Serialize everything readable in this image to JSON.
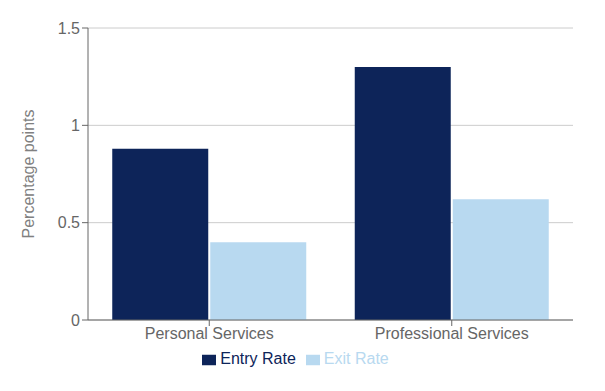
{
  "chart_data": {
    "type": "bar",
    "categories": [
      "Personal Services",
      "Professional Services"
    ],
    "series": [
      {
        "name": "Entry Rate",
        "color": "#0d2459",
        "values": [
          0.88,
          1.3
        ]
      },
      {
        "name": "Exit Rate",
        "color": "#b8d9f0",
        "values": [
          0.4,
          0.62
        ]
      }
    ],
    "ylabel": "Percentage points",
    "ylim": [
      0,
      1.5
    ],
    "yticks": [
      0,
      0.5,
      1,
      1.5
    ],
    "grid": true,
    "legend": "bottom"
  }
}
